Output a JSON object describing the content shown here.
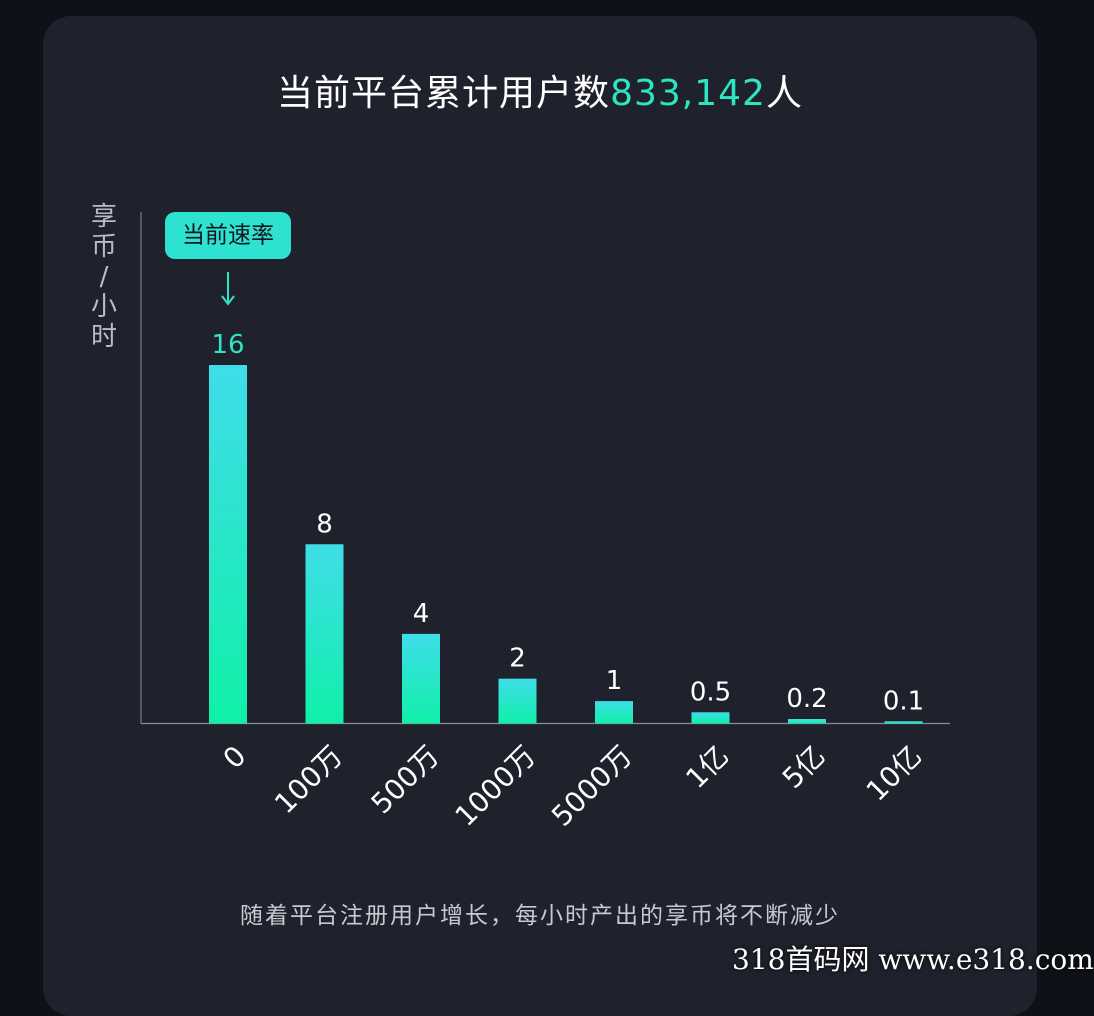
{
  "header": {
    "title_prefix": "当前平台累计用户数",
    "title_number": "833,142",
    "title_suffix": "人"
  },
  "chart_data": {
    "type": "bar",
    "ylabel": "享币/小时",
    "xlabel": "",
    "categories": [
      "0",
      "100万",
      "500万",
      "1000万",
      "5000万",
      "1亿",
      "5亿",
      "10亿"
    ],
    "values": [
      16,
      8,
      4,
      2,
      1,
      0.5,
      0.2,
      0.1
    ],
    "value_labels": [
      "16",
      "8",
      "4",
      "2",
      "1",
      "0.5",
      "0.2",
      "0.1"
    ],
    "ylim": [
      0,
      16
    ],
    "grid": false,
    "annotation": {
      "text": "当前速率",
      "category_index": 0
    },
    "colors": {
      "bar_top": "#3fdde9",
      "bar_bottom": "#10f0a8",
      "highlight_label": "#2ee5c1",
      "label": "#ffffff",
      "axis": "#8a8d99",
      "badge_bg": "#2ee2d2",
      "badge_text": "#12151c"
    }
  },
  "footer": {
    "note": "随着平台注册用户增长，每小时产出的享币将不断减少"
  },
  "watermark": {
    "text": "318首码网 www.e318.com"
  }
}
